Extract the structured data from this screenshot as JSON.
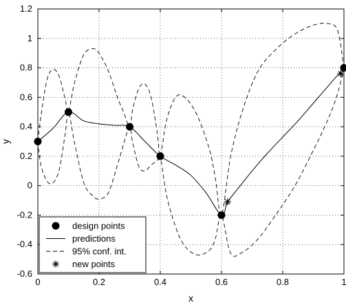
{
  "chart_data": {
    "type": "line",
    "title": "",
    "xlabel": "x",
    "ylabel": "y",
    "xlim": [
      0,
      1
    ],
    "ylim": [
      -0.6,
      1.2
    ],
    "xticks": [
      0,
      0.2,
      0.4,
      0.6,
      0.8,
      1
    ],
    "xtick_labels": [
      "0",
      "0.2",
      "0.4",
      "0.6",
      "0.8",
      "1"
    ],
    "yticks": [
      -0.6,
      -0.4,
      -0.2,
      0,
      0.2,
      0.4,
      0.6,
      0.8,
      1,
      1.2
    ],
    "ytick_labels": [
      "-0.6",
      "-0.4",
      "-0.2",
      "0",
      "0.2",
      "0.4",
      "0.6",
      "0.8",
      "1",
      "1.2"
    ],
    "grid": true,
    "legend_position": "bottom-left",
    "legend": [
      "design points",
      "predictions",
      "95% conf. int.",
      "new points"
    ],
    "design_points": {
      "x": [
        0,
        0.1,
        0.3,
        0.4,
        0.6,
        1.0
      ],
      "y": [
        0.3,
        0.5,
        0.4,
        0.2,
        -0.2,
        0.8
      ]
    },
    "new_points": {
      "x": [
        0.62,
        0.99
      ],
      "y": [
        -0.11,
        0.76
      ]
    },
    "predictions": {
      "x": [
        0,
        0.05,
        0.1,
        0.15,
        0.2,
        0.25,
        0.3,
        0.35,
        0.4,
        0.45,
        0.5,
        0.55,
        0.6,
        0.62,
        0.65,
        0.7,
        0.75,
        0.8,
        0.85,
        0.9,
        0.95,
        1.0
      ],
      "y": [
        0.3,
        0.39,
        0.5,
        0.44,
        0.42,
        0.41,
        0.4,
        0.3,
        0.2,
        0.14,
        0.07,
        -0.05,
        -0.2,
        -0.11,
        -0.03,
        0.1,
        0.22,
        0.33,
        0.44,
        0.56,
        0.68,
        0.8
      ]
    },
    "conf_upper": {
      "x": [
        0,
        0.01,
        0.03,
        0.05,
        0.07,
        0.09,
        0.1,
        0.12,
        0.15,
        0.18,
        0.2,
        0.23,
        0.26,
        0.28,
        0.3,
        0.31,
        0.33,
        0.35,
        0.37,
        0.39,
        0.4,
        0.42,
        0.45,
        0.48,
        0.52,
        0.56,
        0.58,
        0.6,
        0.63,
        0.67,
        0.72,
        0.78,
        0.84,
        0.9,
        0.95,
        0.98,
        1.0
      ],
      "y": [
        0.3,
        0.47,
        0.72,
        0.79,
        0.74,
        0.58,
        0.5,
        0.7,
        0.89,
        0.93,
        0.9,
        0.78,
        0.6,
        0.5,
        0.4,
        0.52,
        0.66,
        0.69,
        0.6,
        0.36,
        0.2,
        0.44,
        0.6,
        0.6,
        0.48,
        0.25,
        0.05,
        -0.2,
        0.2,
        0.52,
        0.78,
        0.93,
        1.03,
        1.09,
        1.1,
        1.05,
        0.8
      ]
    },
    "conf_lower": {
      "x": [
        0,
        0.01,
        0.03,
        0.05,
        0.07,
        0.09,
        0.1,
        0.12,
        0.15,
        0.18,
        0.2,
        0.23,
        0.26,
        0.28,
        0.3,
        0.31,
        0.33,
        0.35,
        0.37,
        0.39,
        0.4,
        0.42,
        0.45,
        0.48,
        0.52,
        0.56,
        0.58,
        0.6,
        0.63,
        0.67,
        0.72,
        0.78,
        0.84,
        0.9,
        0.95,
        0.98,
        1.0
      ],
      "y": [
        0.3,
        0.14,
        0.03,
        0.02,
        0.11,
        0.36,
        0.5,
        0.29,
        0.02,
        -0.07,
        -0.09,
        -0.05,
        0.14,
        0.28,
        0.4,
        0.29,
        0.13,
        0.1,
        0.14,
        0.17,
        0.2,
        -0.06,
        -0.28,
        -0.41,
        -0.47,
        -0.44,
        -0.36,
        -0.2,
        -0.46,
        -0.45,
        -0.36,
        -0.19,
        0.0,
        0.24,
        0.46,
        0.63,
        0.8
      ]
    }
  }
}
